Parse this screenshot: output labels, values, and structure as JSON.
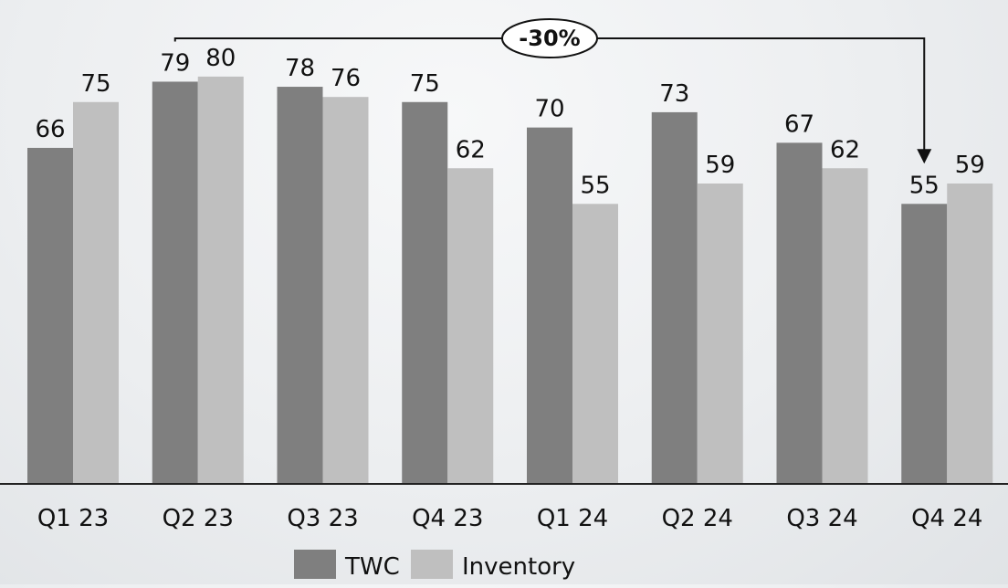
{
  "chart_data": {
    "type": "bar",
    "categories": [
      "Q1 23",
      "Q2 23",
      "Q3 23",
      "Q4 23",
      "Q1 24",
      "Q2 24",
      "Q3 24",
      "Q4 24"
    ],
    "series": [
      {
        "name": "TWC",
        "values": [
          66,
          79,
          78,
          75,
          70,
          73,
          67,
          55
        ],
        "color": "#7f7f7f"
      },
      {
        "name": "Inventory",
        "values": [
          75,
          80,
          76,
          62,
          55,
          59,
          62,
          59
        ],
        "color": "#bfbfbf"
      }
    ],
    "ylim": [
      0,
      85
    ],
    "grid": false,
    "legend_position": "bottom-center",
    "annotation": {
      "label": "-30%",
      "from_category": "Q2 23",
      "to_category": "Q4 24",
      "from_series": "TWC",
      "to_series": "TWC"
    }
  }
}
